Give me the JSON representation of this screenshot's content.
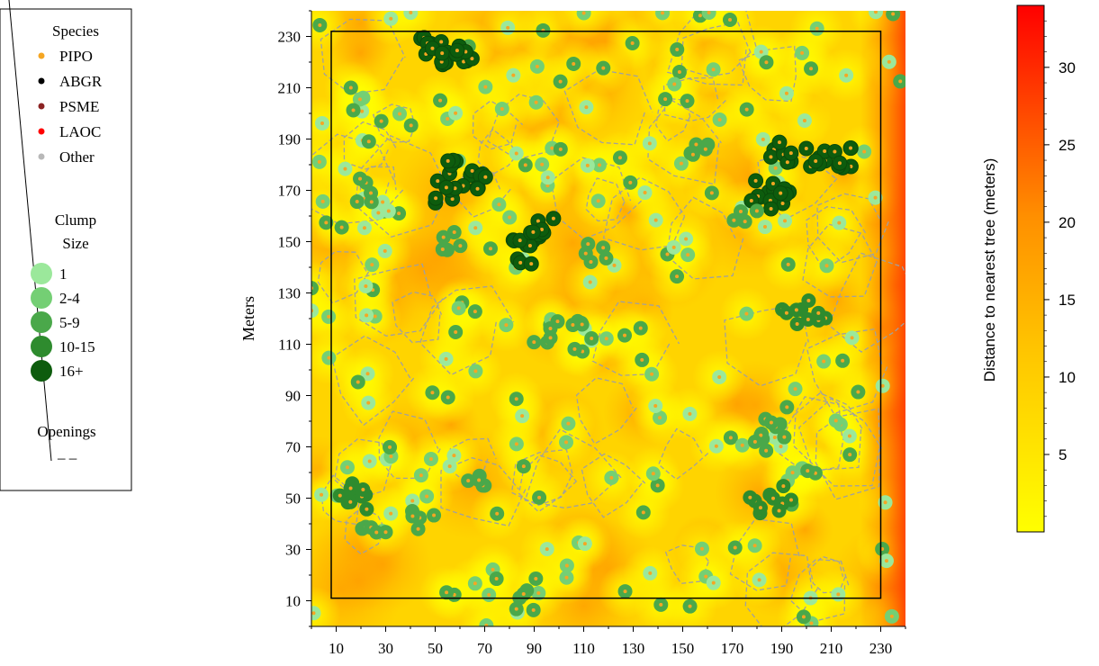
{
  "legend": {
    "species_title": "Species",
    "species": [
      {
        "label": "PIPO",
        "color": "#f5a623"
      },
      {
        "label": "ABGR",
        "color": "#000000"
      },
      {
        "label": "PSME",
        "color": "#8b2323"
      },
      {
        "label": "LAOC",
        "color": "#ff0000"
      },
      {
        "label": "Other",
        "color": "#b8b8b8"
      }
    ],
    "clump_title_line1": "Clump",
    "clump_title_line2": "Size",
    "clumps": [
      {
        "label": "1",
        "color": "#9be89b"
      },
      {
        "label": "2-4",
        "color": "#74cf74"
      },
      {
        "label": "5-9",
        "color": "#4aa84a"
      },
      {
        "label": "10-15",
        "color": "#2e8b2e"
      },
      {
        "label": "16+",
        "color": "#0d5c0d"
      }
    ],
    "openings_label": "Openings",
    "openings_symbol": "– –"
  },
  "chart_data": {
    "type": "heatmap",
    "title": "",
    "xlabel": "",
    "ylabel": "Meters",
    "xlim": [
      0,
      240
    ],
    "ylim": [
      0,
      240
    ],
    "xticks": [
      "10",
      "30",
      "50",
      "70",
      "90",
      "110",
      "130",
      "150",
      "170",
      "190",
      "210",
      "230"
    ],
    "yticks": [
      "10",
      "30",
      "50",
      "70",
      "90",
      "110",
      "130",
      "150",
      "170",
      "190",
      "210",
      "230"
    ],
    "plot_boundary": {
      "x": [
        8,
        230
      ],
      "y": [
        11,
        232
      ]
    },
    "colorbar": {
      "label": "Distance to nearest tree (meters)",
      "ticks": [
        "5",
        "10",
        "15",
        "20",
        "25",
        "30"
      ],
      "range": [
        0,
        34
      ],
      "low_color": "#ffff00",
      "high_color": "#ff0000"
    },
    "clumps": [
      {
        "x": 48,
        "y": 228,
        "size": "16+"
      },
      {
        "x": 55,
        "y": 220,
        "size": "16+"
      },
      {
        "x": 62,
        "y": 225,
        "size": "16+"
      },
      {
        "x": 60,
        "y": 178,
        "size": "16+"
      },
      {
        "x": 66,
        "y": 172,
        "size": "16+"
      },
      {
        "x": 55,
        "y": 170,
        "size": "16+"
      },
      {
        "x": 92,
        "y": 150,
        "size": "16+"
      },
      {
        "x": 86,
        "y": 146,
        "size": "16+"
      },
      {
        "x": 93,
        "y": 158,
        "size": "16+"
      },
      {
        "x": 190,
        "y": 185,
        "size": "16+"
      },
      {
        "x": 205,
        "y": 183,
        "size": "16+"
      },
      {
        "x": 215,
        "y": 182,
        "size": "16+"
      },
      {
        "x": 182,
        "y": 170,
        "size": "16+"
      },
      {
        "x": 190,
        "y": 166,
        "size": "16+"
      },
      {
        "x": 195,
        "y": 122,
        "size": "10-15"
      },
      {
        "x": 205,
        "y": 123,
        "size": "10-15"
      },
      {
        "x": 190,
        "y": 50,
        "size": "10-15"
      },
      {
        "x": 182,
        "y": 48,
        "size": "10-15"
      },
      {
        "x": 12,
        "y": 52,
        "size": "10-15"
      },
      {
        "x": 18,
        "y": 50,
        "size": "10-15"
      },
      {
        "x": 110,
        "y": 115,
        "size": "5-9"
      },
      {
        "x": 95,
        "y": 115,
        "size": "5-9"
      },
      {
        "x": 65,
        "y": 55,
        "size": "5-9"
      },
      {
        "x": 25,
        "y": 40,
        "size": "5-9"
      },
      {
        "x": 45,
        "y": 40,
        "size": "5-9"
      },
      {
        "x": 115,
        "y": 145,
        "size": "5-9"
      },
      {
        "x": 188,
        "y": 82,
        "size": "5-9"
      },
      {
        "x": 180,
        "y": 72,
        "size": "5-9"
      },
      {
        "x": 20,
        "y": 170,
        "size": "5-9"
      },
      {
        "x": 58,
        "y": 150,
        "size": "5-9"
      },
      {
        "x": 158,
        "y": 185,
        "size": "5-9"
      },
      {
        "x": 175,
        "y": 160,
        "size": "5-9"
      },
      {
        "x": 85,
        "y": 10,
        "size": "5-9"
      }
    ]
  }
}
